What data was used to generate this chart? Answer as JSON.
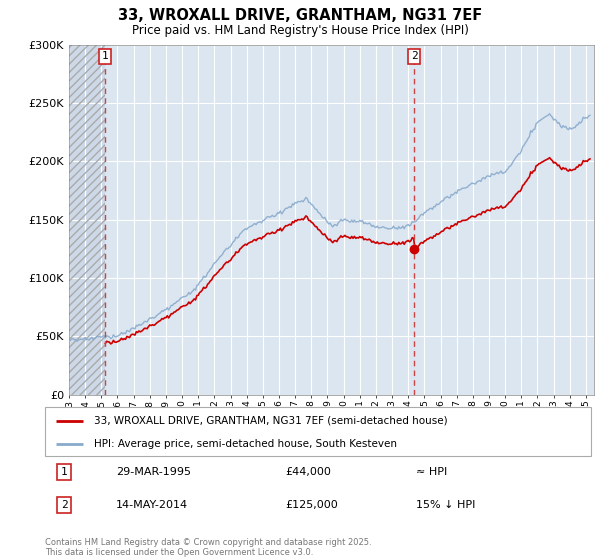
{
  "title": "33, WROXALL DRIVE, GRANTHAM, NG31 7EF",
  "subtitle": "Price paid vs. HM Land Registry's House Price Index (HPI)",
  "legend_line1": "33, WROXALL DRIVE, GRANTHAM, NG31 7EF (semi-detached house)",
  "legend_line2": "HPI: Average price, semi-detached house, South Kesteven",
  "footer": "Contains HM Land Registry data © Crown copyright and database right 2025.\nThis data is licensed under the Open Government Licence v3.0.",
  "annotation1_date": "29-MAR-1995",
  "annotation1_price": "£44,000",
  "annotation1_hpi": "≈ HPI",
  "annotation2_date": "14-MAY-2014",
  "annotation2_price": "£125,000",
  "annotation2_hpi": "15% ↓ HPI",
  "ylim": [
    0,
    300000
  ],
  "xlim_start": 1993.0,
  "xlim_end": 2025.5,
  "point1_x": 1995.25,
  "point1_y": 44000,
  "point2_x": 2014.37,
  "point2_y": 125000,
  "red_color": "#cc0000",
  "blue_color": "#88aacc",
  "bg_color": "#dce6f0",
  "hatch_bg_color": "#cdd9e8"
}
